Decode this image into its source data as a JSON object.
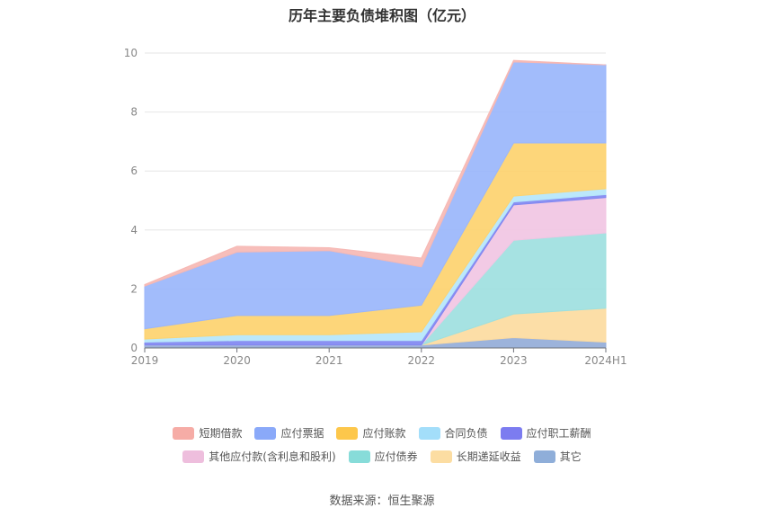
{
  "title": "历年主要负债堆积图（亿元）",
  "source": "数据来源：恒生聚源",
  "chart_data": {
    "type": "area",
    "stacked": true,
    "title": "历年主要负债堆积图（亿元）",
    "x": [
      "2019",
      "2020",
      "2021",
      "2022",
      "2023",
      "2024H1"
    ],
    "ylim": [
      0,
      10
    ],
    "yticks": [
      "0",
      "2",
      "4",
      "6",
      "8",
      "10"
    ],
    "grid": true,
    "legend_position": "bottom",
    "series": [
      {
        "name": "其它",
        "color": "#94add8",
        "values": [
          0.1,
          0.1,
          0.1,
          0.1,
          0.35,
          0.2
        ]
      },
      {
        "name": "长期递延收益",
        "color": "#fcdba0",
        "values": [
          0.0,
          0.0,
          0.0,
          0.0,
          0.8,
          1.15
        ]
      },
      {
        "name": "应付债券",
        "color": "#9ee0df",
        "values": [
          0.0,
          0.0,
          0.0,
          0.0,
          2.5,
          2.55
        ]
      },
      {
        "name": "其他应付款(含利息和股利)",
        "color": "#f1c6e3",
        "values": [
          0.0,
          0.0,
          0.0,
          0.0,
          1.2,
          1.2
        ]
      },
      {
        "name": "应付职工薪酬",
        "color": "#8087f1",
        "values": [
          0.1,
          0.15,
          0.15,
          0.15,
          0.1,
          0.1
        ]
      },
      {
        "name": "合同负债",
        "color": "#b5e6fb",
        "values": [
          0.1,
          0.2,
          0.2,
          0.3,
          0.2,
          0.2
        ]
      },
      {
        "name": "应付账款",
        "color": "#fdd36f",
        "values": [
          0.35,
          0.65,
          0.65,
          0.9,
          1.8,
          1.55
        ]
      },
      {
        "name": "应付票据",
        "color": "#9ab6fb",
        "values": [
          1.45,
          2.15,
          2.2,
          1.3,
          2.75,
          2.65
        ]
      },
      {
        "name": "短期借款",
        "color": "#f6b8b4",
        "values": [
          0.05,
          0.2,
          0.1,
          0.3,
          0.05,
          0.0
        ]
      }
    ]
  },
  "legend": {
    "row1": [
      {
        "label": "短期借款",
        "color": "#f6aca6"
      },
      {
        "label": "应付票据",
        "color": "#8aa9f9"
      },
      {
        "label": "应付账款",
        "color": "#fdc74b"
      },
      {
        "label": "合同负债",
        "color": "#a3defa"
      },
      {
        "label": "应付职工薪酬",
        "color": "#7c7cf0"
      }
    ],
    "row2": [
      {
        "label": "其他应付款(含利息和股利)",
        "color": "#eebedd"
      },
      {
        "label": "应付债券",
        "color": "#87dcd9"
      },
      {
        "label": "长期递延收益",
        "color": "#fcdda2"
      },
      {
        "label": "其它",
        "color": "#8faed9"
      }
    ]
  }
}
